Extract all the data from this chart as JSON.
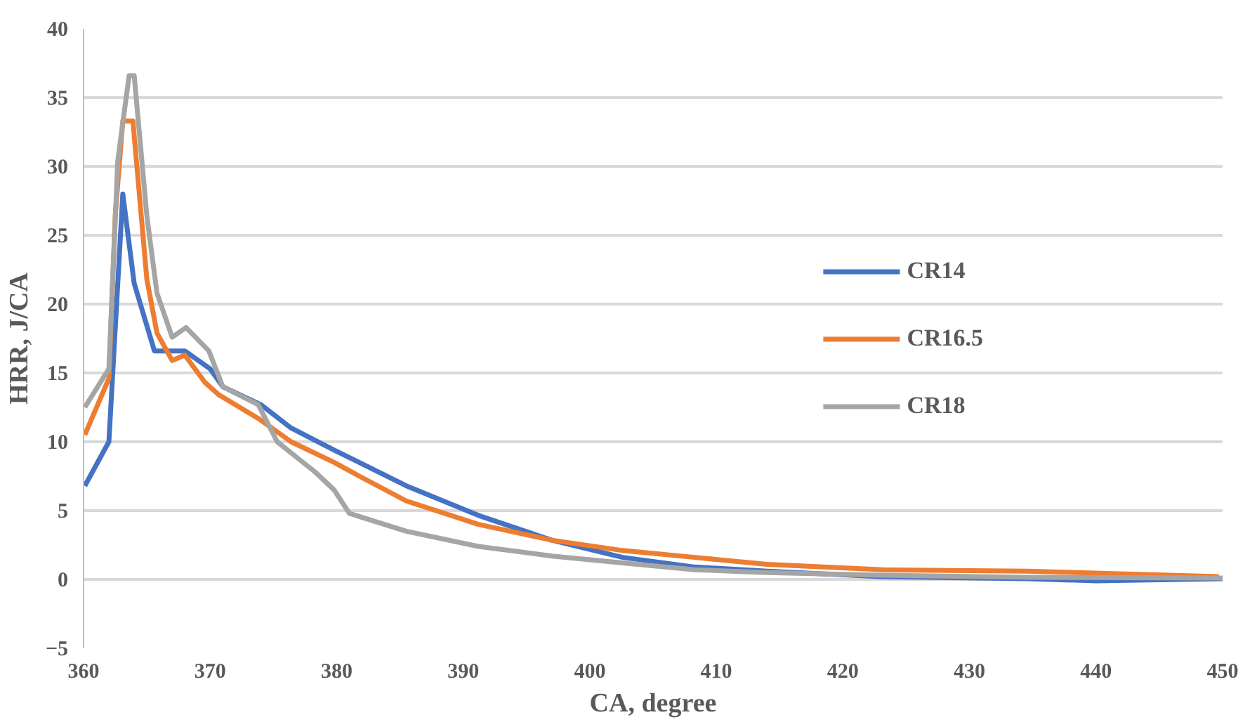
{
  "chart_data": {
    "type": "line",
    "xlabel": "CA, degree",
    "ylabel": "HRR, J/CA",
    "xlim": [
      360,
      450
    ],
    "xticks": [
      360,
      370,
      380,
      390,
      400,
      410,
      420,
      430,
      440,
      450
    ],
    "ylim": [
      -5,
      40
    ],
    "yticks": [
      -5,
      0,
      5,
      10,
      15,
      20,
      25,
      30,
      35,
      40
    ],
    "grid": "y",
    "legend": "right",
    "marker": "none",
    "line_style": "solid",
    "series": [
      {
        "name": "CR14",
        "color": "#4472c4",
        "x": [
          360.1,
          362,
          363.1,
          364,
          365.6,
          368,
          370,
          371,
          374,
          376.4,
          379.8,
          382,
          385.5,
          391.2,
          397,
          402.6,
          408.3,
          414,
          423,
          434.6,
          440,
          450
        ],
        "values": [
          6.8,
          10,
          28,
          21.5,
          16.6,
          16.6,
          15.3,
          14,
          12.7,
          11,
          9.4,
          8.4,
          6.8,
          4.65,
          2.85,
          1.6,
          0.9,
          0.6,
          0.2,
          0.05,
          -0.1,
          0.05
        ]
      },
      {
        "name": "CR16.5",
        "color": "#ed7d31",
        "x": [
          360.1,
          362,
          362.5,
          363.1,
          363.9,
          365,
          365.8,
          367,
          368,
          369.6,
          370.7,
          373.8,
          376.4,
          379.8,
          382,
          385.5,
          391.2,
          397,
          402.6,
          408.3,
          414,
          423.2,
          434.6,
          449.7
        ],
        "values": [
          10.5,
          14.6,
          26.4,
          33.3,
          33.3,
          21.8,
          17.9,
          15.9,
          16.3,
          14.3,
          13.4,
          11.7,
          10,
          8.5,
          7.4,
          5.7,
          4,
          2.85,
          2.1,
          1.6,
          1.1,
          0.7,
          0.6,
          0.2
        ]
      },
      {
        "name": "CR18",
        "color": "#a5a5a5",
        "x": [
          360.1,
          362,
          362.7,
          363.6,
          364,
          365,
          365.8,
          367,
          368.1,
          369.9,
          371,
          373.8,
          375.3,
          378.3,
          379.8,
          381,
          385.5,
          391.2,
          397,
          402.6,
          408.3,
          414,
          423,
          434.6,
          450
        ],
        "values": [
          12.5,
          15.3,
          30.4,
          36.6,
          36.6,
          26.4,
          20.8,
          17.6,
          18.3,
          16.6,
          14,
          12.7,
          10,
          7.8,
          6.5,
          4.8,
          3.5,
          2.4,
          1.7,
          1.2,
          0.7,
          0.5,
          0.3,
          0.15,
          0.1
        ]
      }
    ]
  }
}
